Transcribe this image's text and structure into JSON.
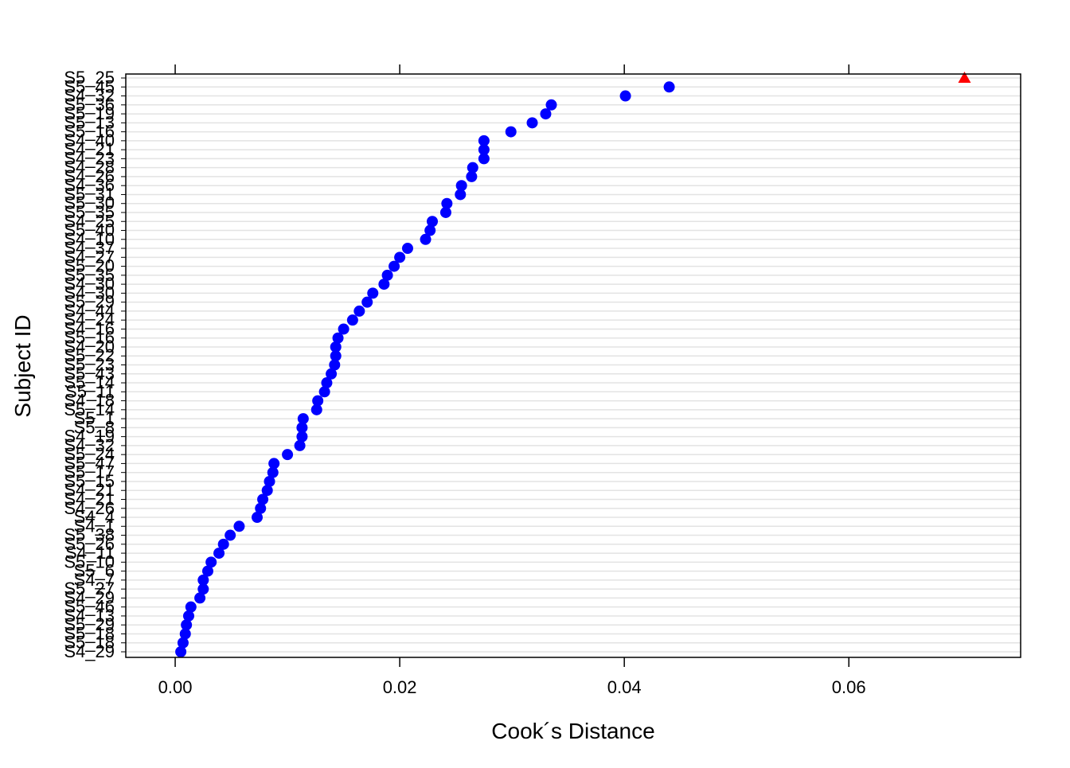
{
  "chart_data": {
    "type": "scatter",
    "xlabel": "Cook´s Distance",
    "ylabel": "Subject ID",
    "xlim": [
      -0.0044,
      0.0753
    ],
    "xticks": [
      0.0,
      0.02,
      0.04,
      0.06
    ],
    "xtick_labels": [
      "0.00",
      "0.02",
      "0.04",
      "0.06"
    ],
    "grid": "horizontal",
    "series": [
      {
        "marker": "circle",
        "color": "#0000ff",
        "points": [
          {
            "id": "S5_45",
            "x": 0.044
          },
          {
            "id": "S4_32",
            "x": 0.0401
          },
          {
            "id": "S5_36",
            "x": 0.0335
          },
          {
            "id": "S5_19",
            "x": 0.033
          },
          {
            "id": "S5_13",
            "x": 0.0318
          },
          {
            "id": "S5_16",
            "x": 0.0299
          },
          {
            "id": "S4_40",
            "x": 0.0275
          },
          {
            "id": "S4_21",
            "x": 0.0275
          },
          {
            "id": "S4_23",
            "x": 0.0275
          },
          {
            "id": "S4_28",
            "x": 0.0265
          },
          {
            "id": "S4_26",
            "x": 0.0264
          },
          {
            "id": "S4_36",
            "x": 0.0255
          },
          {
            "id": "S5_31",
            "x": 0.0254
          },
          {
            "id": "S5_30",
            "x": 0.0242
          },
          {
            "id": "S5_35",
            "x": 0.0241
          },
          {
            "id": "S4_25",
            "x": 0.0229
          },
          {
            "id": "S5_40",
            "x": 0.0227
          },
          {
            "id": "S4_10",
            "x": 0.0223
          },
          {
            "id": "S4_37",
            "x": 0.0207
          },
          {
            "id": "S4_27",
            "x": 0.02
          },
          {
            "id": "S5_20",
            "x": 0.0195
          },
          {
            "id": "S5_35b",
            "x": 0.0189
          },
          {
            "id": "S4_30",
            "x": 0.0186
          },
          {
            "id": "S4_30b",
            "x": 0.0176
          },
          {
            "id": "S5_29",
            "x": 0.0171
          },
          {
            "id": "S4_44",
            "x": 0.0164
          },
          {
            "id": "S4_24",
            "x": 0.0158
          },
          {
            "id": "S4_16",
            "x": 0.015
          },
          {
            "id": "S5_16b",
            "x": 0.0145
          },
          {
            "id": "S4_20",
            "x": 0.0143
          },
          {
            "id": "S5_22",
            "x": 0.0143
          },
          {
            "id": "S5_23",
            "x": 0.0142
          },
          {
            "id": "S5_43",
            "x": 0.0139
          },
          {
            "id": "S5_14",
            "x": 0.0135
          },
          {
            "id": "S5_11",
            "x": 0.0133
          },
          {
            "id": "S4_18",
            "x": 0.0127
          },
          {
            "id": "S5_14b",
            "x": 0.0126
          },
          {
            "id": "S5_1",
            "x": 0.0114
          },
          {
            "id": "S5_8",
            "x": 0.0113
          },
          {
            "id": "S4_19",
            "x": 0.0113
          },
          {
            "id": "S4_32b",
            "x": 0.0111
          },
          {
            "id": "S5_24",
            "x": 0.01
          },
          {
            "id": "S5_47",
            "x": 0.0088
          },
          {
            "id": "S5_17",
            "x": 0.0087
          },
          {
            "id": "S5_15",
            "x": 0.0084
          },
          {
            "id": "S4_21b",
            "x": 0.0082
          },
          {
            "id": "S4_21c",
            "x": 0.0078
          },
          {
            "id": "S4_26b",
            "x": 0.0076
          },
          {
            "id": "S4_4",
            "x": 0.0073
          },
          {
            "id": "S4_1",
            "x": 0.0057
          },
          {
            "id": "S5_38",
            "x": 0.0049
          },
          {
            "id": "S5_26",
            "x": 0.0043
          },
          {
            "id": "S4_11",
            "x": 0.0039
          },
          {
            "id": "S5_10",
            "x": 0.0032
          },
          {
            "id": "S5_6",
            "x": 0.0029
          },
          {
            "id": "S4_7",
            "x": 0.0025
          },
          {
            "id": "S5_27",
            "x": 0.0025
          },
          {
            "id": "S4_29",
            "x": 0.0022
          },
          {
            "id": "S5_46",
            "x": 0.0014
          },
          {
            "id": "S4_13",
            "x": 0.0012
          },
          {
            "id": "S5_29b",
            "x": 0.001
          },
          {
            "id": "S5_18",
            "x": 0.0009
          },
          {
            "id": "S5_18b",
            "x": 0.0007
          },
          {
            "id": "S4_29b",
            "x": 0.0005
          }
        ]
      },
      {
        "marker": "triangle",
        "color": "#ff0000",
        "points": [
          {
            "id": "S5_25",
            "x": 0.0703
          }
        ]
      }
    ],
    "ytick_labels": [
      "S5_25",
      "S5_45",
      "S4_32",
      "S5_36",
      "S5_19",
      "S5_13",
      "S5_16",
      "S4_40",
      "S4_21",
      "S4_23",
      "S4_28",
      "S4_26",
      "S4_36",
      "S5_31",
      "S5_30",
      "S5_35",
      "S4_25",
      "S5_40",
      "S4_10",
      "S4_37",
      "S4_27",
      "S5_20",
      "S5_35",
      "S4_30",
      "S4_30",
      "S5_29",
      "S4_44",
      "S4_24",
      "S4_16",
      "S5_16",
      "S4_20",
      "S5_22",
      "S5_23",
      "S5_43",
      "S5_14",
      "S5_11",
      "S4_18",
      "S5_14",
      "S5_1",
      "S5_8",
      "S4_19",
      "S4_32",
      "S5_24",
      "S5_47",
      "S5_17",
      "S5_15",
      "S4_21",
      "S4_21",
      "S4_26",
      "S4_4",
      "S4_1",
      "S5_38",
      "S5_26",
      "S4_11",
      "S5_10",
      "S5_6",
      "S4_7",
      "S5_27",
      "S4_29",
      "S5_46",
      "S4_13",
      "S5_29",
      "S5_18",
      "S5_18",
      "S4_29"
    ]
  }
}
